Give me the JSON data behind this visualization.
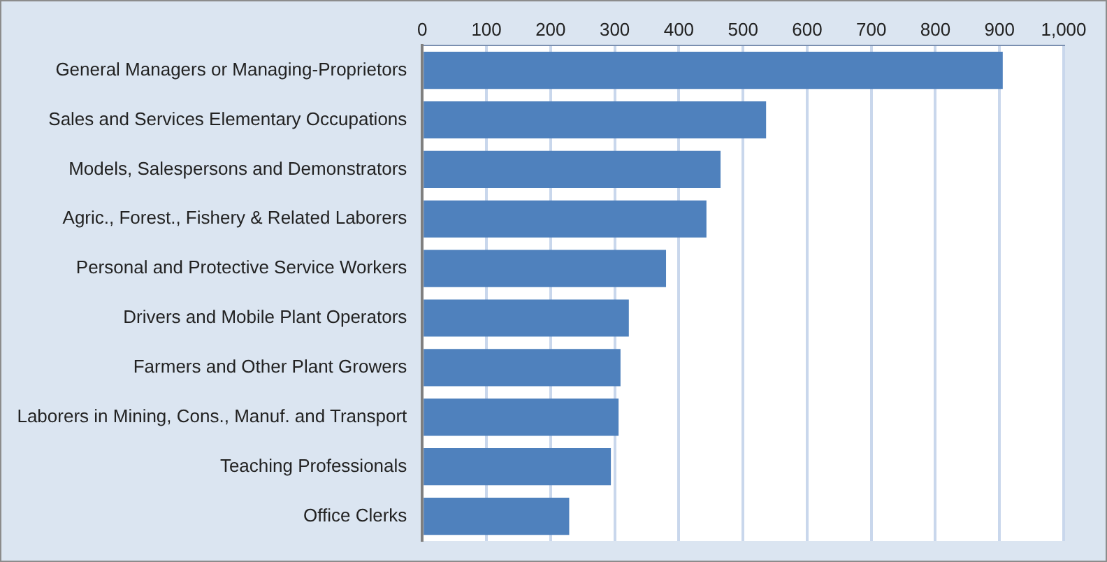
{
  "chart_data": {
    "type": "bar",
    "orientation": "horizontal",
    "categories": [
      "General Managers or Managing-Proprietors",
      "Sales and Services Elementary Occupations",
      "Models, Salespersons and Demonstrators",
      "Agric., Forest., Fishery & Related Laborers",
      "Personal and Protective Service Workers",
      "Drivers and Mobile Plant Operators",
      "Farmers and Other Plant Growers",
      "Laborers in Mining, Cons., Manuf. and Transport",
      "Teaching Professionals",
      "Office Clerks"
    ],
    "values": [
      905,
      536,
      465,
      443,
      380,
      322,
      309,
      306,
      294,
      229
    ],
    "color": "#4f81bd",
    "xlim": [
      0,
      1000
    ],
    "xticks": [
      0,
      100,
      200,
      300,
      400,
      500,
      600,
      700,
      800,
      900,
      {
        "value": 1000,
        "label": "1,000"
      }
    ],
    "grid": "x",
    "legend": false
  }
}
